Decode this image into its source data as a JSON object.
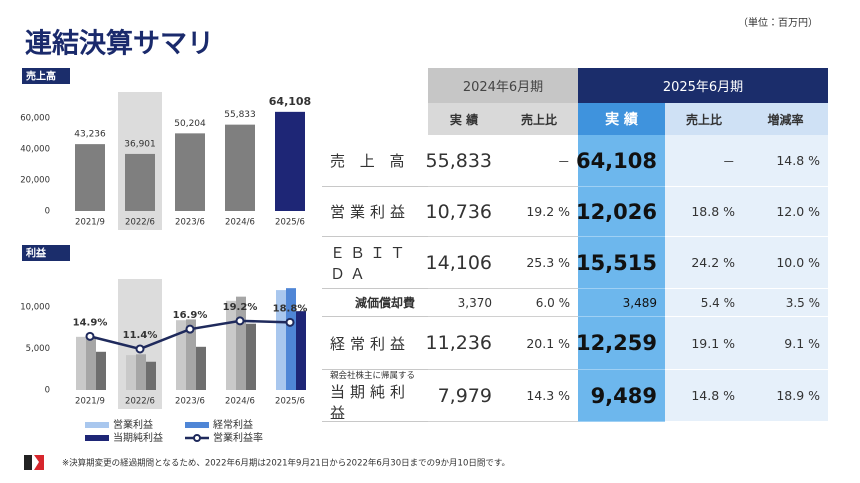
{
  "header": {
    "title": "連結決算サマリ",
    "unit": "（単位：百万円）"
  },
  "chart_data": [
    {
      "type": "bar",
      "title": "売上高",
      "categories": [
        "2021/9",
        "2022/6",
        "2023/6",
        "2024/6",
        "2025/6"
      ],
      "values": [
        43236,
        36901,
        50204,
        55833,
        64108
      ],
      "value_labels": [
        "43,236",
        "36,901",
        "50,204",
        "55,833",
        "64,108"
      ],
      "colors": [
        "#7f7f7f",
        "#7f7f7f",
        "#7f7f7f",
        "#7f7f7f",
        "#1e2676"
      ],
      "highlight_index": 1,
      "ylim": [
        0,
        75000
      ],
      "yticks": [
        0,
        {
          "value": 20000,
          "label": "20,000"
        },
        {
          "value": 40000,
          "label": "40,000"
        },
        {
          "value": 60000,
          "label": "60,000"
        }
      ]
    },
    {
      "type": "bar_line",
      "title": "利益",
      "categories": [
        "2021/9",
        "2022/6",
        "2023/6",
        "2024/6",
        "2025/6"
      ],
      "highlight_index": 1,
      "series": [
        {
          "name": "営業利益",
          "kind": "bar",
          "color": "#a9c7ee",
          "past_color": "#c9c9c9",
          "values": [
            6400,
            4200,
            8400,
            10736,
            12026
          ]
        },
        {
          "name": "経常利益",
          "kind": "bar",
          "color": "#4f86d6",
          "past_color": "#a6a6a6",
          "values": [
            6400,
            4300,
            8500,
            11236,
            12259
          ]
        },
        {
          "name": "当期純利益",
          "kind": "bar",
          "color": "#1e2676",
          "past_color": "#6e6e6e",
          "values": [
            4600,
            3400,
            5200,
            7979,
            9489
          ]
        },
        {
          "name": "営業利益率",
          "kind": "line",
          "axis": "y2",
          "color": "#1f2a5c",
          "values": [
            14.9,
            11.4,
            16.9,
            19.2,
            18.8
          ],
          "value_labels": [
            "14.9%",
            "11.4%",
            "16.9%",
            "19.2%",
            "18.8%"
          ]
        }
      ],
      "ylim": [
        0,
        13000
      ],
      "yticks": [
        0,
        {
          "value": 5000,
          "label": "5,000"
        },
        {
          "value": 10000,
          "label": "10,000"
        }
      ],
      "y2lim": [
        0,
        30
      ]
    }
  ],
  "table": {
    "header_groups": [
      "2024年6月期",
      "2025年6月期"
    ],
    "columns": [
      "実 績",
      "売上比",
      "実 績",
      "売上比",
      "増減率"
    ],
    "rows": [
      {
        "label": "売 上 高",
        "cells": [
          "55,833",
          "－",
          "64,108",
          "－",
          "14.8 %"
        ]
      },
      {
        "label": "営業利益",
        "cells": [
          "10,736",
          "19.2 %",
          "12,026",
          "18.8 %",
          "12.0 %"
        ]
      },
      {
        "label": "ＥＢＩＴＤＡ",
        "cells": [
          "14,106",
          "25.3 %",
          "15,515",
          "24.2 %",
          "10.0 %"
        ]
      },
      {
        "label": "減価償却費",
        "cells": [
          "3,370",
          "6.0 %",
          "3,489",
          "5.4 %",
          "3.5 %"
        ]
      },
      {
        "label": "経常利益",
        "cells": [
          "11,236",
          "20.1 %",
          "12,259",
          "19.1 %",
          "9.1 %"
        ]
      },
      {
        "label": "当期純利益",
        "sublabel": "親会社株主に帰属する",
        "cells": [
          "7,979",
          "14.3 %",
          "9,489",
          "14.8 %",
          "18.9 %"
        ]
      }
    ]
  },
  "footnote": "※決算期変更の経過期間となるため、2022年6月期は2021年9月21日から2022年6月30日までの9か月10日間です。"
}
